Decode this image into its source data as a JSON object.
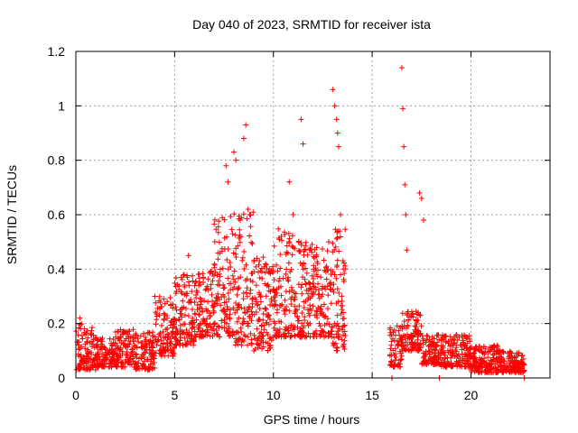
{
  "chart_data": {
    "type": "scatter",
    "title": "Day 040 of 2023, SRMTID for receiver ista",
    "xlabel": "GPS time / hours",
    "ylabel": "SRMTID / TECUs",
    "xlim": [
      0,
      24
    ],
    "ylim": [
      0,
      1.2
    ],
    "xticks": [
      "0",
      "5",
      "10",
      "15",
      "20"
    ],
    "xtick_values": [
      0,
      5,
      10,
      15,
      20
    ],
    "yticks": [
      "0",
      "0.2",
      "0.4",
      "0.6",
      "0.8",
      "1",
      "1.2"
    ],
    "ytick_values": [
      0,
      0.2,
      0.4,
      0.6,
      0.8,
      1.0,
      1.2
    ],
    "grid": true,
    "marker": "+",
    "series_color": "#ff0000",
    "series": [
      {
        "name": "ista",
        "envelope": [
          {
            "t_start": 0.0,
            "t_end": 1.0,
            "low": 0.03,
            "high": 0.2
          },
          {
            "t_start": 1.0,
            "t_end": 2.0,
            "low": 0.04,
            "high": 0.15
          },
          {
            "t_start": 2.0,
            "t_end": 3.0,
            "low": 0.04,
            "high": 0.18
          },
          {
            "t_start": 3.0,
            "t_end": 4.0,
            "low": 0.03,
            "high": 0.17
          },
          {
            "t_start": 4.0,
            "t_end": 5.0,
            "low": 0.08,
            "high": 0.3
          },
          {
            "t_start": 5.0,
            "t_end": 6.0,
            "low": 0.12,
            "high": 0.38
          },
          {
            "t_start": 6.0,
            "t_end": 7.0,
            "low": 0.15,
            "high": 0.4
          },
          {
            "t_start": 7.0,
            "t_end": 8.0,
            "low": 0.15,
            "high": 0.6
          },
          {
            "t_start": 8.0,
            "t_end": 9.0,
            "low": 0.12,
            "high": 0.62
          },
          {
            "t_start": 9.0,
            "t_end": 10.0,
            "low": 0.1,
            "high": 0.45
          },
          {
            "t_start": 10.0,
            "t_end": 11.0,
            "low": 0.15,
            "high": 0.55
          },
          {
            "t_start": 11.0,
            "t_end": 12.0,
            "low": 0.15,
            "high": 0.52
          },
          {
            "t_start": 12.0,
            "t_end": 13.0,
            "low": 0.15,
            "high": 0.48
          },
          {
            "t_start": 13.0,
            "t_end": 13.7,
            "low": 0.1,
            "high": 0.55
          },
          {
            "t_start": 15.9,
            "t_end": 16.5,
            "low": 0.04,
            "high": 0.2
          },
          {
            "t_start": 16.5,
            "t_end": 17.5,
            "low": 0.1,
            "high": 0.25
          },
          {
            "t_start": 17.5,
            "t_end": 18.5,
            "low": 0.05,
            "high": 0.16
          },
          {
            "t_start": 18.5,
            "t_end": 20.0,
            "low": 0.04,
            "high": 0.16
          },
          {
            "t_start": 20.0,
            "t_end": 21.5,
            "low": 0.02,
            "high": 0.12
          },
          {
            "t_start": 21.5,
            "t_end": 22.7,
            "low": 0.02,
            "high": 0.1
          }
        ],
        "peaks": [
          {
            "t": 0.2,
            "y": 0.22
          },
          {
            "t": 4.0,
            "y": 0.3
          },
          {
            "t": 5.7,
            "y": 0.45
          },
          {
            "t": 7.6,
            "y": 0.78
          },
          {
            "t": 7.7,
            "y": 0.72
          },
          {
            "t": 8.0,
            "y": 0.83
          },
          {
            "t": 8.1,
            "y": 0.8
          },
          {
            "t": 8.5,
            "y": 0.88
          },
          {
            "t": 8.6,
            "y": 0.93
          },
          {
            "t": 8.8,
            "y": 0.6
          },
          {
            "t": 10.8,
            "y": 0.72
          },
          {
            "t": 11.0,
            "y": 0.6
          },
          {
            "t": 11.4,
            "y": 0.95
          },
          {
            "t": 11.5,
            "y": 0.86
          },
          {
            "t": 12.8,
            "y": 0.5
          },
          {
            "t": 13.0,
            "y": 1.06
          },
          {
            "t": 13.1,
            "y": 1.0
          },
          {
            "t": 13.2,
            "y": 0.95
          },
          {
            "t": 13.25,
            "y": 0.9
          },
          {
            "t": 13.3,
            "y": 0.85
          },
          {
            "t": 13.4,
            "y": 0.6
          },
          {
            "t": 16.0,
            "y": 0.0
          },
          {
            "t": 16.5,
            "y": 1.14
          },
          {
            "t": 16.55,
            "y": 0.99
          },
          {
            "t": 16.6,
            "y": 0.85
          },
          {
            "t": 16.65,
            "y": 0.71
          },
          {
            "t": 16.7,
            "y": 0.6
          },
          {
            "t": 16.75,
            "y": 0.47
          },
          {
            "t": 17.4,
            "y": 0.68
          },
          {
            "t": 17.5,
            "y": 0.66
          },
          {
            "t": 17.6,
            "y": 0.58
          },
          {
            "t": 18.4,
            "y": 0.0
          },
          {
            "t": 22.7,
            "y": 0.0
          }
        ]
      }
    ]
  }
}
